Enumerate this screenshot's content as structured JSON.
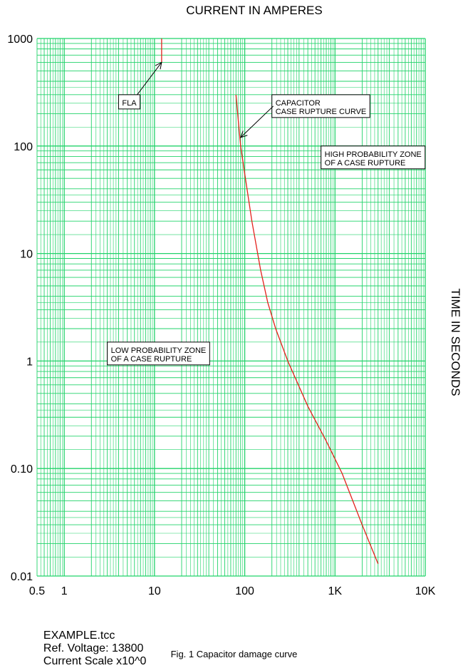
{
  "chart_data": {
    "type": "line",
    "title": "CURRENT IN AMPERES",
    "ylabel": "TIME IN SECONDS",
    "x_scale": "log",
    "y_scale": "log",
    "xlim": [
      0.5,
      10000
    ],
    "ylim": [
      0.01,
      1000
    ],
    "x_ticks": [
      {
        "value": 0.5,
        "label": "0.5"
      },
      {
        "value": 1,
        "label": "1"
      },
      {
        "value": 10,
        "label": "10"
      },
      {
        "value": 100,
        "label": "100"
      },
      {
        "value": 1000,
        "label": "1K"
      },
      {
        "value": 10000,
        "label": "10K"
      }
    ],
    "y_ticks": [
      {
        "value": 1000,
        "label": "1000"
      },
      {
        "value": 100,
        "label": "100"
      },
      {
        "value": 10,
        "label": "10"
      },
      {
        "value": 1,
        "label": "1"
      },
      {
        "value": 0.1,
        "label": "0.10"
      },
      {
        "value": 0.01,
        "label": "0.01"
      }
    ],
    "grid": true,
    "series": [
      {
        "color": "#e4211c",
        "x": [
          12,
          12
        ],
        "y": [
          1000,
          600
        ]
      },
      {
        "color": "#e4211c",
        "x": [
          80,
          85,
          90,
          100,
          120,
          150,
          180,
          220,
          300,
          500,
          800,
          1200,
          2000,
          3000
        ],
        "y": [
          300,
          170,
          100,
          55,
          20,
          7,
          3.5,
          2,
          1,
          0.38,
          0.18,
          0.09,
          0.03,
          0.013
        ]
      }
    ],
    "annotations": [
      {
        "id": "fla",
        "text": "FLA",
        "x": 4,
        "y": 300,
        "arrow_to": {
          "x": 12,
          "y": 600
        }
      },
      {
        "id": "rupture",
        "lines": [
          "CAPACITOR",
          "CASE RUPTURE CURVE"
        ],
        "x": 200,
        "y": 300,
        "arrow_to": {
          "x": 90,
          "y": 120
        }
      },
      {
        "id": "high_zone",
        "lines": [
          "HIGH PROBABILITY ZONE",
          "OF A CASE RUPTURE"
        ],
        "x": 700,
        "y": 100
      },
      {
        "id": "low_zone",
        "lines": [
          "LOW PROBABILITY ZONE",
          "OF A CASE RUPTURE"
        ],
        "x": 3,
        "y": 1.5
      }
    ],
    "colors": {
      "grid": "#22d36a",
      "curve": "#e4211c"
    }
  },
  "footer": {
    "file": "EXAMPLE.tcc",
    "ref_voltage": "Ref. Voltage: 13800",
    "current_scale": "Current Scale x10^0"
  },
  "caption": "Fig. 1 Capacitor damage curve"
}
